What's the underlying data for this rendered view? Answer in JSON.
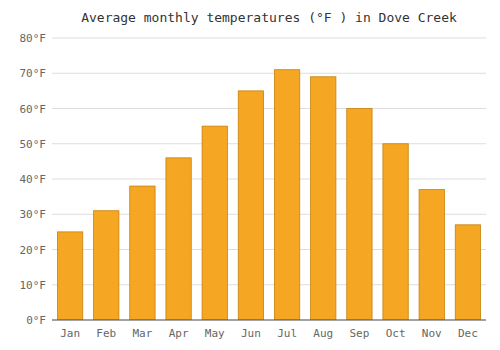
{
  "chart_data": {
    "type": "bar",
    "title": "Average monthly temperatures (°F ) in Dove Creek",
    "categories": [
      "Jan",
      "Feb",
      "Mar",
      "Apr",
      "May",
      "Jun",
      "Jul",
      "Aug",
      "Sep",
      "Oct",
      "Nov",
      "Dec"
    ],
    "values": [
      25,
      31,
      38,
      46,
      55,
      65,
      71,
      69,
      60,
      50,
      37,
      27
    ],
    "color": "#F5A623",
    "ylim": [
      0,
      80
    ],
    "yticks": [
      {
        "value": 0,
        "label": "0°F"
      },
      {
        "value": 10,
        "label": "10°F"
      },
      {
        "value": 20,
        "label": "20°F"
      },
      {
        "value": 30,
        "label": "30°F"
      },
      {
        "value": 40,
        "label": "40°F"
      },
      {
        "value": 50,
        "label": "50°F"
      },
      {
        "value": 60,
        "label": "60°F"
      },
      {
        "value": 70,
        "label": "70°F"
      },
      {
        "value": 80,
        "label": "80°F"
      }
    ],
    "grid": true
  }
}
